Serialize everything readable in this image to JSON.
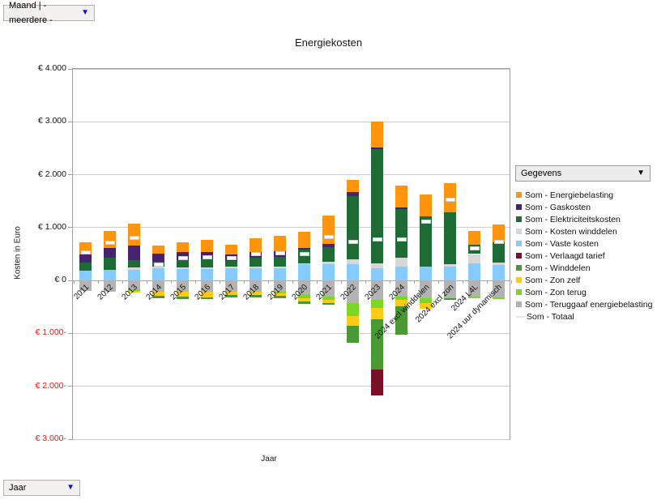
{
  "controls": {
    "row_field_label": "Maand | - meerdere -",
    "column_field_label": "Jaar",
    "data_field_label": "Gegevens"
  },
  "chart_data": {
    "type": "bar",
    "subtype": "stacked-with-negative",
    "title": "Energiekosten",
    "xlabel": "Jaar",
    "ylabel": "Kosten in Euro",
    "ylim": [
      -3000,
      4000
    ],
    "grid": "horizontal",
    "legend_position": "right",
    "yticks": [
      {
        "v": 4000,
        "label": "€ 4.000"
      },
      {
        "v": 3000,
        "label": "€ 3.000"
      },
      {
        "v": 2000,
        "label": "€ 2.000"
      },
      {
        "v": 1000,
        "label": "€ 1.000"
      },
      {
        "v": 0,
        "label": "€ 0"
      },
      {
        "v": -1000,
        "label": "€ 1.000-"
      },
      {
        "v": -2000,
        "label": "€ 2.000-"
      },
      {
        "v": -3000,
        "label": "€ 3.000-"
      }
    ],
    "categories": [
      "2011",
      "2012",
      "2013",
      "2014",
      "2015",
      "2016",
      "2017",
      "2018",
      "2019",
      "2020",
      "2021",
      "2022",
      "2023",
      "2024",
      "2024 excl winddelen",
      "2024 excl zon",
      "2024 L4L",
      "2024 uur dynamisch"
    ],
    "series": [
      {
        "key": "energiebelasting",
        "name": "Som - Energiebelasting",
        "color": "#FF950E",
        "marker": false,
        "values": [
          230,
          315,
          410,
          155,
          180,
          230,
          185,
          255,
          285,
          305,
          525,
          230,
          495,
          415,
          420,
          550,
          260,
          330
        ]
      },
      {
        "key": "gaskosten",
        "name": "Som - Gaskosten",
        "color": "#45246D",
        "marker": false,
        "values": [
          155,
          180,
          280,
          155,
          155,
          145,
          120,
          120,
          115,
          30,
          60,
          75,
          20,
          30,
          0,
          0,
          0,
          0
        ]
      },
      {
        "key": "elektriciteitskosten",
        "name": "Som - Elektriciteitskosten",
        "color": "#1E6B35",
        "marker": false,
        "values": [
          155,
          230,
          140,
          90,
          140,
          150,
          100,
          170,
          180,
          250,
          280,
          1190,
          2160,
          930,
          955,
          975,
          175,
          390
        ]
      },
      {
        "key": "kosten_winddelen",
        "name": "Som - Kosten winddelen",
        "color": "#D7D7D7",
        "marker": false,
        "values": [
          0,
          0,
          35,
          35,
          25,
          25,
          40,
          25,
          35,
          25,
          40,
          90,
          105,
          160,
          0,
          55,
          170,
          45
        ]
      },
      {
        "key": "vaste_kosten",
        "name": "Som - Vaste kosten",
        "color": "#85CBFF",
        "marker": false,
        "values": [
          180,
          205,
          205,
          230,
          215,
          220,
          230,
          230,
          230,
          305,
          315,
          310,
          225,
          265,
          255,
          255,
          330,
          290
        ]
      },
      {
        "key": "verlaagd_tarief",
        "name": "Som - Verlaagd tarief",
        "color": "#7A1026",
        "marker": false,
        "values": [
          0,
          0,
          0,
          0,
          0,
          0,
          0,
          0,
          0,
          0,
          0,
          0,
          -485,
          0,
          0,
          0,
          0,
          0
        ]
      },
      {
        "key": "winddelen",
        "name": "Som - Winddelen",
        "color": "#4A9934",
        "marker": false,
        "values": [
          0,
          0,
          0,
          -35,
          -40,
          -35,
          -50,
          -40,
          -35,
          -45,
          -25,
          -320,
          -945,
          -525,
          0,
          -25,
          0,
          0
        ]
      },
      {
        "key": "zon_zelf",
        "name": "Som - Zon zelf",
        "color": "#FFCB17",
        "marker": false,
        "values": [
          0,
          0,
          -30,
          -80,
          -90,
          -100,
          -55,
          -65,
          -50,
          -60,
          -60,
          -190,
          -215,
          -130,
          -110,
          0,
          0,
          0
        ]
      },
      {
        "key": "zon_terug",
        "name": "Som - Zon terug",
        "color": "#7CD628",
        "marker": false,
        "values": [
          0,
          0,
          -30,
          0,
          0,
          0,
          0,
          0,
          -30,
          -65,
          -65,
          -245,
          -155,
          -60,
          -90,
          0,
          -30,
          -25
        ]
      },
      {
        "key": "teruggaaf_energiebelasting",
        "name": "Som - Teruggaaf energiebelasting",
        "color": "#B3B3B3",
        "marker": false,
        "values": [
          -190,
          -205,
          -170,
          -215,
          -215,
          -215,
          -215,
          -215,
          -215,
          -265,
          -305,
          -420,
          -370,
          -305,
          -335,
          -335,
          -305,
          -325
        ]
      },
      {
        "key": "totaal",
        "name": "Som - Totaal",
        "color": "#E6E6E6",
        "marker": true,
        "values": [
          535,
          715,
          800,
          305,
          420,
          445,
          425,
          500,
          520,
          500,
          815,
          730,
          780,
          780,
          1110,
          1530,
          600,
          730
        ]
      }
    ]
  }
}
